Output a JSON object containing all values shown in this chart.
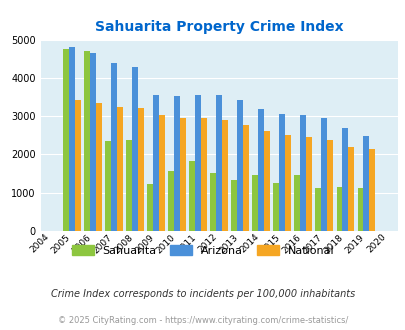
{
  "title": "Sahuarita Property Crime Index",
  "years_labels": [
    "2004",
    "2005",
    "2006",
    "2007",
    "2008",
    "2009",
    "2010",
    "2011",
    "2012",
    "2013",
    "2014",
    "2015",
    "2016",
    "2017",
    "2018",
    "2019",
    "2020"
  ],
  "data_years": [
    2005,
    2006,
    2007,
    2008,
    2009,
    2010,
    2011,
    2012,
    2013,
    2014,
    2015,
    2016,
    2017,
    2018,
    2019
  ],
  "sahuarita": [
    4750,
    4700,
    2350,
    2370,
    1220,
    1560,
    1820,
    1520,
    1330,
    1470,
    1250,
    1460,
    1130,
    1150,
    1120
  ],
  "arizona": [
    4800,
    4640,
    4400,
    4280,
    3560,
    3530,
    3560,
    3540,
    3420,
    3180,
    3050,
    3020,
    2960,
    2680,
    2480
  ],
  "national": [
    3420,
    3340,
    3250,
    3220,
    3040,
    2950,
    2940,
    2890,
    2760,
    2620,
    2500,
    2460,
    2370,
    2200,
    2140
  ],
  "sahuarita_color": "#8dc63f",
  "arizona_color": "#4a90d9",
  "national_color": "#f5a623",
  "bg_color": "#deeef5",
  "title_color": "#0066cc",
  "ylim": [
    0,
    5000
  ],
  "yticks": [
    0,
    1000,
    2000,
    3000,
    4000,
    5000
  ],
  "footer_note": "Crime Index corresponds to incidents per 100,000 inhabitants",
  "copyright": "© 2025 CityRating.com - https://www.cityrating.com/crime-statistics/",
  "legend_labels": [
    "Sahuarita",
    "Arizona",
    "National"
  ],
  "figsize": [
    4.06,
    3.3
  ],
  "dpi": 100
}
